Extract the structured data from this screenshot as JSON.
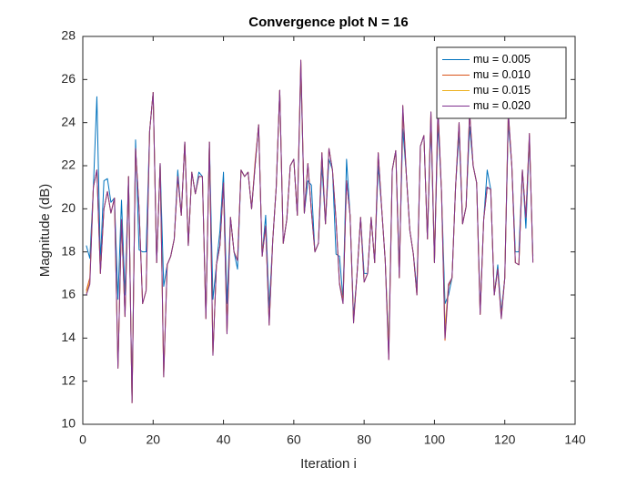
{
  "chart_data": {
    "type": "line",
    "title": "Convergence plot N = 16",
    "xlabel": "Iteration i",
    "ylabel": "Magnitude (dB)",
    "x": [
      1,
      2,
      3,
      4,
      5,
      6,
      7,
      8,
      9,
      10,
      11,
      12,
      13,
      14,
      15,
      16,
      17,
      18,
      19,
      20,
      21,
      22,
      23,
      24,
      25,
      26,
      27,
      28,
      29,
      30,
      31,
      32,
      33,
      34,
      35,
      36,
      37,
      38,
      39,
      40,
      41,
      42,
      43,
      44,
      45,
      46,
      47,
      48,
      49,
      50,
      51,
      52,
      53,
      54,
      55,
      56,
      57,
      58,
      59,
      60,
      61,
      62,
      63,
      64,
      65,
      66,
      67,
      68,
      69,
      70,
      71,
      72,
      73,
      74,
      75,
      76,
      77,
      78,
      79,
      80,
      81,
      82,
      83,
      84,
      85,
      86,
      87,
      88,
      89,
      90,
      91,
      92,
      93,
      94,
      95,
      96,
      97,
      98,
      99,
      100,
      101,
      102,
      103,
      104,
      105,
      106,
      107,
      108,
      109,
      110,
      111,
      112,
      113,
      114,
      115,
      116,
      117,
      118,
      119,
      120,
      121,
      122,
      123,
      124,
      125,
      126,
      127,
      128
    ],
    "series": [
      {
        "name": "mu = 0.005",
        "color": "#0072BD",
        "values": [
          18.3,
          17.7,
          21.0,
          25.2,
          17.5,
          21.3,
          21.4,
          20.3,
          20.5,
          15.8,
          20.4,
          16.0,
          21.5,
          11.1,
          23.2,
          18.1,
          18.0,
          18.0,
          23.6,
          25.4,
          17.5,
          22.1,
          16.4,
          17.4,
          17.8,
          18.6,
          21.8,
          19.7,
          23.1,
          18.3,
          21.7,
          20.7,
          21.7,
          21.5,
          15.0,
          23.1,
          15.8,
          17.4,
          19.0,
          21.7,
          15.6,
          19.6,
          18.0,
          17.2,
          21.8,
          21.5,
          21.7,
          20.0,
          22.0,
          23.9,
          17.8,
          19.7,
          15.4,
          18.5,
          21.0,
          25.5,
          18.4,
          19.5,
          22.0,
          22.3,
          19.7,
          26.5,
          19.8,
          21.3,
          21.1,
          18.0,
          18.4,
          22.0,
          19.3,
          22.3,
          21.8,
          17.9,
          17.8,
          15.8,
          22.3,
          19.7,
          15.0,
          17.0,
          19.6,
          17.0,
          17.0,
          19.6,
          17.5,
          22.0,
          20.0,
          17.6,
          13.6,
          21.8,
          22.7,
          17.2,
          23.7,
          21.6,
          19.0,
          17.9,
          16.3,
          22.9,
          23.4,
          18.6,
          24.0,
          17.5,
          24.0,
          20.8,
          15.6,
          16.0,
          16.8,
          21.0,
          23.5,
          19.3,
          20.1,
          23.8,
          22.0,
          21.2,
          15.3,
          19.5,
          21.8,
          20.9,
          16.0,
          17.4,
          15.2,
          16.8,
          24.0,
          22.0,
          18.0,
          18.0,
          21.8,
          19.1,
          23.2,
          17.8
        ]
      },
      {
        "name": "mu = 0.010",
        "color": "#D95319",
        "values": [
          16.2,
          16.8,
          21.0,
          21.8,
          17.0,
          20.0,
          20.8,
          19.8,
          20.5,
          12.7,
          19.5,
          15.0,
          21.5,
          11.0,
          22.8,
          20.0,
          15.6,
          16.2,
          23.6,
          25.4,
          17.5,
          22.1,
          12.3,
          17.4,
          17.8,
          18.6,
          21.5,
          19.7,
          23.1,
          18.3,
          21.7,
          20.7,
          21.5,
          21.5,
          14.9,
          23.1,
          13.3,
          17.4,
          18.3,
          21.2,
          14.3,
          19.6,
          18.0,
          17.6,
          21.8,
          21.5,
          21.7,
          20.0,
          22.2,
          23.9,
          17.8,
          19.2,
          14.7,
          18.5,
          21.0,
          25.5,
          18.4,
          19.5,
          22.0,
          22.3,
          19.7,
          26.8,
          19.8,
          22.1,
          19.9,
          18.0,
          18.4,
          22.6,
          19.3,
          22.8,
          21.8,
          19.5,
          16.6,
          15.7,
          21.3,
          19.7,
          14.8,
          17.0,
          19.6,
          16.6,
          17.0,
          19.6,
          17.5,
          22.6,
          20.0,
          17.6,
          13.0,
          21.8,
          22.7,
          16.8,
          24.6,
          21.6,
          19.0,
          17.9,
          16.0,
          22.9,
          23.4,
          18.6,
          24.4,
          17.5,
          24.6,
          20.8,
          13.9,
          16.4,
          16.8,
          21.0,
          24.0,
          19.3,
          20.1,
          24.4,
          22.0,
          21.2,
          15.1,
          19.5,
          21.0,
          20.9,
          16.0,
          17.2,
          15.0,
          16.8,
          24.4,
          22.0,
          17.5,
          17.4,
          21.8,
          19.6,
          23.4,
          17.6
        ]
      },
      {
        "name": "mu = 0.015",
        "color": "#EDB120",
        "values": [
          16.1,
          16.6,
          21.0,
          21.8,
          17.0,
          20.0,
          20.8,
          19.8,
          20.5,
          12.6,
          19.5,
          15.0,
          21.5,
          11.0,
          22.8,
          20.0,
          15.6,
          16.2,
          23.6,
          25.4,
          17.5,
          22.1,
          12.2,
          17.4,
          17.8,
          18.6,
          21.5,
          19.7,
          23.1,
          18.3,
          21.7,
          20.7,
          21.5,
          21.5,
          14.9,
          23.1,
          13.2,
          17.4,
          18.3,
          21.2,
          14.2,
          19.6,
          18.0,
          17.6,
          21.8,
          21.5,
          21.7,
          20.0,
          22.0,
          23.9,
          17.8,
          19.2,
          14.6,
          18.5,
          21.0,
          25.5,
          18.4,
          19.5,
          22.0,
          22.3,
          19.7,
          26.9,
          19.8,
          22.1,
          19.9,
          18.0,
          18.4,
          22.6,
          19.3,
          22.8,
          21.8,
          19.5,
          16.5,
          15.6,
          21.3,
          19.7,
          14.7,
          17.0,
          19.6,
          16.6,
          17.0,
          19.6,
          17.5,
          22.6,
          20.0,
          17.6,
          13.5,
          21.8,
          22.7,
          16.8,
          24.8,
          21.6,
          19.0,
          17.9,
          16.0,
          22.9,
          23.4,
          18.6,
          24.5,
          17.5,
          24.7,
          20.8,
          14.5,
          16.5,
          16.8,
          21.0,
          24.0,
          19.3,
          20.1,
          24.5,
          22.0,
          21.2,
          15.1,
          19.5,
          21.0,
          20.9,
          16.0,
          17.2,
          14.9,
          16.8,
          24.5,
          22.0,
          17.5,
          17.4,
          21.8,
          19.6,
          23.5,
          17.5
        ]
      },
      {
        "name": "mu = 0.020",
        "color": "#7E2F8E",
        "values": [
          16.0,
          16.5,
          21.0,
          21.8,
          17.0,
          20.0,
          20.8,
          19.8,
          20.5,
          12.6,
          19.5,
          15.0,
          21.5,
          11.0,
          22.8,
          20.0,
          15.6,
          16.2,
          23.6,
          25.4,
          17.5,
          22.1,
          12.2,
          17.4,
          17.8,
          18.6,
          21.5,
          19.7,
          23.1,
          18.3,
          21.7,
          20.7,
          21.5,
          21.5,
          14.9,
          23.1,
          13.2,
          17.4,
          18.3,
          21.2,
          14.2,
          19.6,
          18.0,
          17.6,
          21.8,
          21.5,
          21.7,
          20.0,
          22.0,
          23.9,
          17.8,
          19.2,
          14.6,
          18.5,
          21.0,
          25.5,
          18.4,
          19.5,
          22.0,
          22.3,
          19.7,
          26.9,
          19.8,
          22.1,
          19.9,
          18.0,
          18.4,
          22.6,
          19.3,
          22.8,
          21.8,
          19.5,
          16.5,
          15.6,
          21.3,
          19.7,
          14.7,
          17.0,
          19.6,
          16.6,
          17.0,
          19.6,
          17.5,
          22.6,
          20.0,
          17.6,
          13.0,
          21.8,
          22.7,
          16.8,
          24.8,
          21.6,
          19.0,
          17.9,
          16.0,
          22.9,
          23.4,
          18.6,
          24.5,
          17.5,
          24.7,
          20.8,
          14.0,
          16.5,
          16.8,
          21.0,
          24.0,
          19.3,
          20.1,
          24.5,
          22.0,
          21.2,
          15.1,
          19.5,
          21.0,
          20.9,
          16.0,
          17.2,
          14.9,
          16.8,
          24.5,
          22.0,
          17.5,
          17.4,
          21.8,
          19.6,
          23.5,
          17.5
        ]
      }
    ],
    "xlim": [
      0,
      140
    ],
    "xticks": [
      0,
      20,
      40,
      60,
      80,
      100,
      120,
      140
    ],
    "ylim": [
      10,
      28
    ],
    "yticks": [
      10,
      12,
      14,
      16,
      18,
      20,
      22,
      24,
      26,
      28
    ],
    "legend": "upper right",
    "grid": false
  }
}
